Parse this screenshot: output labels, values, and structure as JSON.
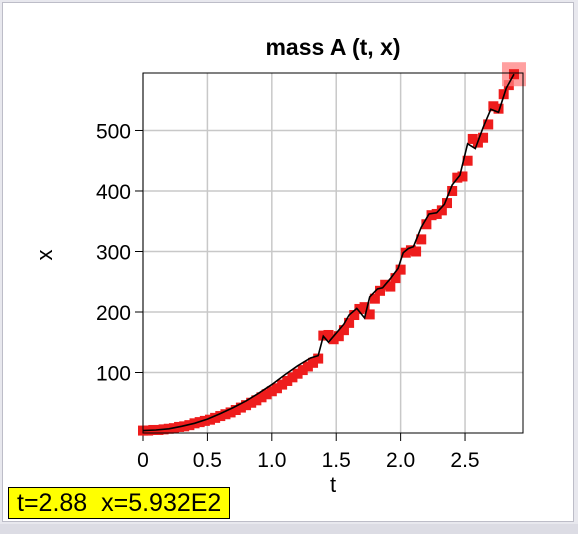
{
  "window": {
    "readout": "t=2.88  x=5.932E2"
  },
  "chart_data": {
    "type": "line",
    "title": "mass A (t, x)",
    "xlabel": "t",
    "ylabel": "x",
    "xlim": [
      0,
      2.95
    ],
    "ylim": [
      0,
      595
    ],
    "xticks": [
      "0",
      "0.5",
      "1.0",
      "1.5",
      "2.0",
      "2.5"
    ],
    "yticks": [
      "100",
      "200",
      "300",
      "400",
      "500"
    ],
    "grid": true,
    "series": [
      {
        "color": "#000000",
        "marker": "none",
        "x": [
          0.0,
          0.1,
          0.2,
          0.3,
          0.4,
          0.5,
          0.6,
          0.7,
          0.8,
          0.9,
          1.0,
          1.1,
          1.2,
          1.3,
          1.36,
          1.4,
          1.44,
          1.5,
          1.56,
          1.6,
          1.66,
          1.72,
          1.76,
          1.82,
          1.86,
          1.92,
          1.98,
          2.02,
          2.06,
          2.1,
          2.16,
          2.22,
          2.28,
          2.34,
          2.4,
          2.46,
          2.52,
          2.58,
          2.64,
          2.7,
          2.76,
          2.82,
          2.88
        ],
        "y": [
          4,
          5,
          7,
          11,
          16,
          23,
          32,
          42,
          53,
          66,
          80,
          96,
          111,
          124,
          128,
          160,
          150,
          165,
          180,
          195,
          206,
          190,
          225,
          238,
          240,
          255,
          272,
          298,
          305,
          308,
          340,
          362,
          364,
          378,
          410,
          426,
          478,
          470,
          505,
          535,
          530,
          570,
          593
        ]
      },
      {
        "color": "#ee1c1c",
        "marker": "square",
        "x": [
          0.0,
          0.04,
          0.08,
          0.12,
          0.16,
          0.2,
          0.24,
          0.28,
          0.32,
          0.36,
          0.4,
          0.44,
          0.48,
          0.52,
          0.56,
          0.6,
          0.64,
          0.68,
          0.72,
          0.76,
          0.8,
          0.84,
          0.88,
          0.92,
          0.96,
          1.0,
          1.04,
          1.08,
          1.12,
          1.16,
          1.2,
          1.24,
          1.28,
          1.32,
          1.36,
          1.4,
          1.44,
          1.48,
          1.52,
          1.56,
          1.6,
          1.64,
          1.68,
          1.72,
          1.76,
          1.8,
          1.84,
          1.88,
          1.92,
          1.96,
          2.0,
          2.04,
          2.08,
          2.12,
          2.16,
          2.2,
          2.24,
          2.28,
          2.32,
          2.36,
          2.4,
          2.44,
          2.48,
          2.52,
          2.56,
          2.6,
          2.64,
          2.68,
          2.72,
          2.76,
          2.8,
          2.84,
          2.88
        ],
        "y": [
          4,
          4,
          5,
          5,
          6,
          7,
          8,
          10,
          11,
          13,
          16,
          18,
          20,
          22,
          25,
          28,
          31,
          34,
          38,
          42,
          46,
          50,
          54,
          59,
          64,
          69,
          74,
          80,
          86,
          92,
          98,
          104,
          110,
          116,
          123,
          161,
          162,
          155,
          160,
          170,
          182,
          195,
          205,
          208,
          196,
          222,
          235,
          245,
          242,
          256,
          270,
          298,
          302,
          300,
          320,
          345,
          360,
          362,
          368,
          380,
          400,
          422,
          424,
          450,
          486,
          480,
          488,
          510,
          540,
          536,
          560,
          575,
          593
        ],
        "last_highlight": "#ff8080"
      }
    ]
  }
}
